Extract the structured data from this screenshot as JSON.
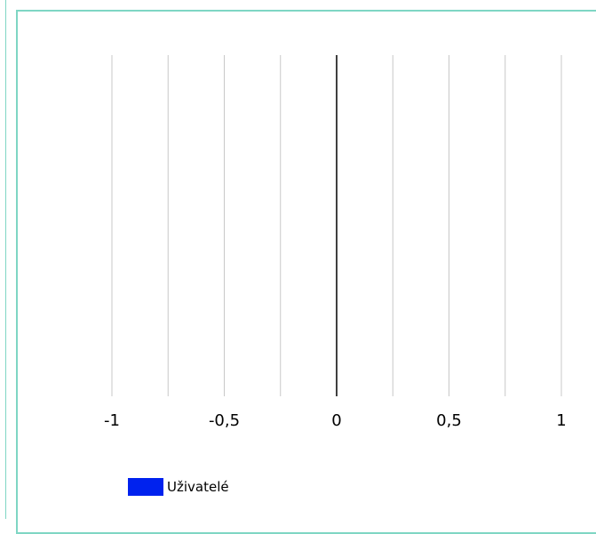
{
  "chart_data": {
    "type": "bar",
    "orientation": "horizontal",
    "categories": [],
    "series": [
      {
        "name": "Uživatelé",
        "values": [],
        "color": "#0022ee"
      }
    ],
    "xlim": [
      -1,
      1
    ],
    "x_ticks": [
      -1,
      -0.75,
      -0.5,
      -0.25,
      0,
      0.25,
      0.5,
      0.75,
      1
    ],
    "x_tick_labels": [
      {
        "value": -1,
        "label": "-1"
      },
      {
        "value": -0.5,
        "label": "-0,5"
      },
      {
        "value": 0,
        "label": "0"
      },
      {
        "value": 0.5,
        "label": "0,5"
      },
      {
        "value": 1,
        "label": "1"
      }
    ],
    "grid": true,
    "legend_position": "bottom-left",
    "title": "",
    "xlabel": "",
    "ylabel": ""
  },
  "colors": {
    "frame": "#7fd6c4",
    "grid": "#c8c8c8",
    "zero_line": "#000000"
  }
}
